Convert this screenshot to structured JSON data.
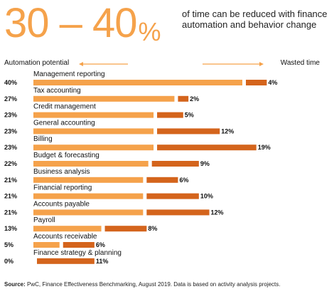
{
  "headline": {
    "number": "30 – 40",
    "percent": "%",
    "subtitle_line1": "of time can be reduced with finance",
    "subtitle_line2": "automation and behavior change"
  },
  "axis": {
    "left_label": "Automation potential",
    "right_label": "Wasted time"
  },
  "colors": {
    "automation_bar": "#f5a24b",
    "wasted_bar": "#d4641c",
    "headline": "#f5a24b"
  },
  "source": {
    "prefix": "Source:",
    "text": " PwC, Finance Effectiveness Benchmarking, August 2019. Data is based on activity analysis projects."
  },
  "chart_data": {
    "type": "bar",
    "categories": [
      "Management reporting",
      "Tax accounting",
      "Credit management",
      "General accounting",
      "Billing",
      "Budget & forecasting",
      "Business analysis",
      "Financial reporting",
      "Accounts payable",
      "Payroll",
      "Accounts receivable",
      "Finance strategy & planning"
    ],
    "series": [
      {
        "name": "Automation potential",
        "values": [
          40,
          27,
          23,
          23,
          23,
          22,
          21,
          21,
          21,
          13,
          5,
          0
        ],
        "labels": [
          "40%",
          "27%",
          "23%",
          "23%",
          "23%",
          "22%",
          "21%",
          "21%",
          "21%",
          "13%",
          "5%",
          "0%"
        ]
      },
      {
        "name": "Wasted time",
        "values": [
          4,
          2,
          5,
          12,
          19,
          9,
          6,
          10,
          12,
          8,
          6,
          11
        ],
        "labels": [
          "4%",
          "2%",
          "5%",
          "12%",
          "19%",
          "9%",
          "6%",
          "10%",
          "12%",
          "8%",
          "6%",
          "11%"
        ]
      }
    ]
  }
}
